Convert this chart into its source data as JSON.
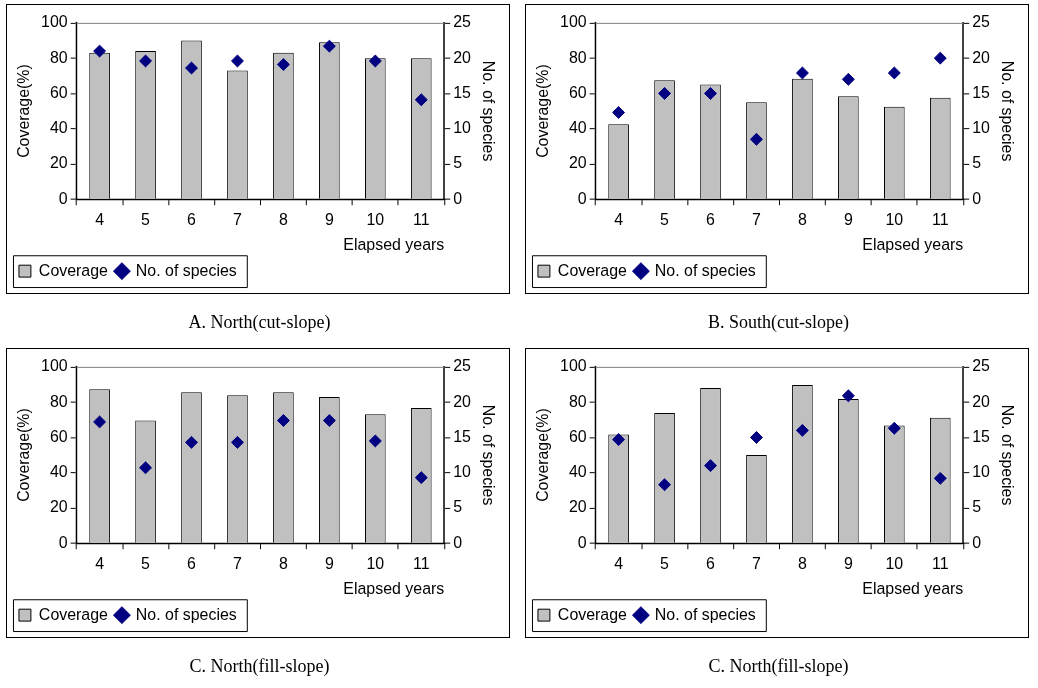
{
  "chart_data": [
    {
      "type": "bar",
      "categories": [
        "4",
        "5",
        "6",
        "7",
        "8",
        "9",
        "10",
        "11"
      ],
      "xlabel": "Elapsed years",
      "ylabel": "Coverage(%)",
      "y2label": "No. of species",
      "ylim": [
        0,
        100
      ],
      "yticks": [
        0,
        20,
        40,
        60,
        80,
        100
      ],
      "y2lim": [
        0,
        25
      ],
      "y2ticks": [
        0,
        5,
        10,
        15,
        20,
        25
      ],
      "legend": "bottom left",
      "grid": false,
      "marker": "diamond",
      "annotations": [
        "A.  North(cut-slope)"
      ],
      "series": [
        {
          "name": "Coverage",
          "color": "#c0c0c0",
          "values": [
            83,
            84,
            90,
            73,
            83,
            89,
            80,
            80
          ]
        },
        {
          "type": "scatter",
          "name": "No. of species",
          "color": "#000080",
          "axis": "y2",
          "x": [
            "4",
            "5",
            "6",
            "7",
            "8",
            "9",
            "10",
            "11"
          ],
          "values": [
            21,
            19.6,
            18.6,
            19.6,
            19.1,
            21.7,
            19.6,
            14.1
          ]
        }
      ]
    },
    {
      "type": "bar",
      "categories": [
        "4",
        "5",
        "6",
        "7",
        "8",
        "9",
        "10",
        "11"
      ],
      "xlabel": "Elapsed years",
      "ylabel": "Coverage(%)",
      "y2label": "No. of species",
      "ylim": [
        0,
        100
      ],
      "yticks": [
        0,
        20,
        40,
        60,
        80,
        100
      ],
      "y2lim": [
        0,
        25
      ],
      "y2ticks": [
        0,
        5,
        10,
        15,
        20,
        25
      ],
      "legend": "bottom left",
      "grid": false,
      "marker": "diamond",
      "annotations": [
        "B.  South(cut-slope)"
      ],
      "series": [
        {
          "name": "Coverage",
          "color": "#c0c0c0",
          "values": [
            42.5,
            67.4,
            65,
            55,
            68.3,
            58.4,
            52.5,
            57.5
          ]
        },
        {
          "type": "scatter",
          "name": "No. of species",
          "color": "#000080",
          "axis": "y2",
          "x": [
            "4",
            "5",
            "6",
            "7",
            "8",
            "9",
            "10",
            "11"
          ],
          "values": [
            12.3,
            15,
            15,
            8.5,
            17.9,
            17,
            17.9,
            20
          ]
        }
      ]
    },
    {
      "type": "bar",
      "categories": [
        "4",
        "5",
        "6",
        "7",
        "8",
        "9",
        "10",
        "11"
      ],
      "xlabel": "Elapsed years",
      "ylabel": "Coverage(%)",
      "y2label": "No. of species",
      "ylim": [
        0,
        100
      ],
      "yticks": [
        0,
        20,
        40,
        60,
        80,
        100
      ],
      "y2lim": [
        0,
        25
      ],
      "y2ticks": [
        0,
        5,
        10,
        15,
        20,
        25
      ],
      "legend": "bottom left",
      "grid": false,
      "marker": "diamond",
      "annotations": [
        "C.  North(fill-slope)"
      ],
      "series": [
        {
          "name": "Coverage",
          "color": "#c0c0c0",
          "values": [
            87.3,
            69.6,
            85.6,
            83.9,
            85.6,
            82.9,
            73.2,
            76.7
          ]
        },
        {
          "type": "scatter",
          "name": "No. of species",
          "color": "#000080",
          "axis": "y2",
          "x": [
            "4",
            "5",
            "6",
            "7",
            "8",
            "9",
            "10",
            "11"
          ],
          "values": [
            17.2,
            10.7,
            14.3,
            14.3,
            17.4,
            17.4,
            14.5,
            9.3
          ]
        }
      ]
    },
    {
      "type": "bar",
      "categories": [
        "4",
        "5",
        "6",
        "7",
        "8",
        "9",
        "10",
        "11"
      ],
      "xlabel": "Elapsed years",
      "ylabel": "Coverage(%)",
      "y2label": "No. of species",
      "ylim": [
        0,
        100
      ],
      "yticks": [
        0,
        20,
        40,
        60,
        80,
        100
      ],
      "y2lim": [
        0,
        25
      ],
      "y2ticks": [
        0,
        5,
        10,
        15,
        20,
        25
      ],
      "legend": "bottom left",
      "grid": false,
      "marker": "diamond",
      "annotations": [
        "C.  North(fill-slope)"
      ],
      "series": [
        {
          "name": "Coverage",
          "color": "#c0c0c0",
          "values": [
            61.7,
            73.9,
            88,
            50,
            89.7,
            81.8,
            66.8,
            71.1
          ]
        },
        {
          "type": "scatter",
          "name": "No. of species",
          "color": "#000080",
          "axis": "y2",
          "x": [
            "4",
            "5",
            "6",
            "7",
            "8",
            "9",
            "10",
            "11"
          ],
          "values": [
            14.7,
            8.3,
            11,
            15,
            16,
            20.9,
            16.3,
            9.2
          ]
        }
      ]
    }
  ]
}
